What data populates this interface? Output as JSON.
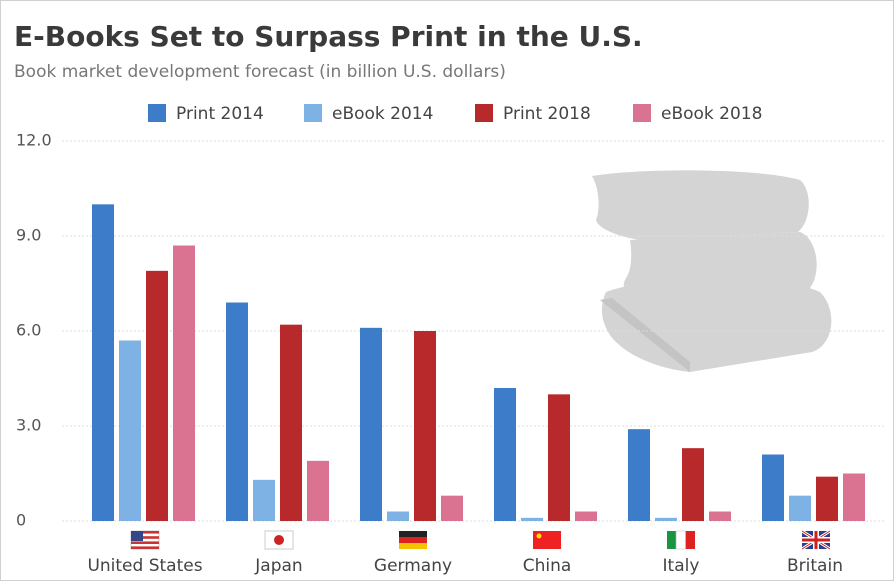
{
  "chart_data": {
    "type": "bar",
    "title": "E-Books Set to Surpass Print in the U.S.",
    "subtitle": "Book market development forecast (in billion U.S. dollars)",
    "categories": [
      "United States",
      "Japan",
      "Germany",
      "China",
      "Italy",
      "Britain"
    ],
    "series": [
      {
        "name": "Print 2014",
        "color": "#3d7cc9",
        "values": [
          10.0,
          6.9,
          6.1,
          4.2,
          2.9,
          2.1
        ]
      },
      {
        "name": "eBook 2014",
        "color": "#7fb2e4",
        "values": [
          5.7,
          1.3,
          0.3,
          0.1,
          0.1,
          0.8
        ]
      },
      {
        "name": "Print 2018",
        "color": "#b8292b",
        "values": [
          7.9,
          6.2,
          6.0,
          4.0,
          2.3,
          1.4
        ]
      },
      {
        "name": "eBook 2018",
        "color": "#d97391",
        "values": [
          8.7,
          1.9,
          0.8,
          0.3,
          0.3,
          1.5
        ]
      }
    ],
    "ylim": [
      0,
      12
    ],
    "yticks": [
      0,
      {
        "value": 3,
        "label": "3.0"
      },
      {
        "value": 6,
        "label": "6.0"
      },
      {
        "value": 9,
        "label": "9.0"
      },
      {
        "value": 12,
        "label": "12.0"
      }
    ],
    "grid": true,
    "legend": "top"
  }
}
